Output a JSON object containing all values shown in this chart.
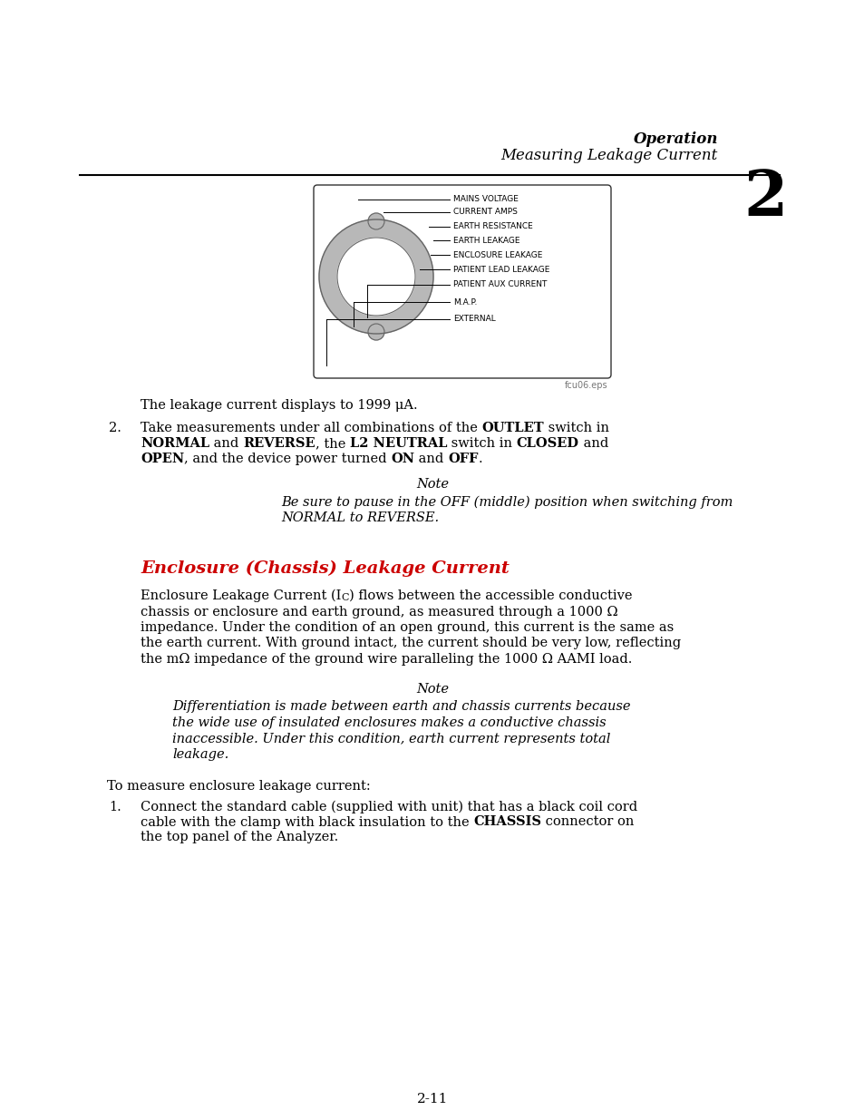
{
  "bg_color": "#ffffff",
  "header_italic": "Operation",
  "header_sub": "Measuring Leakage Current",
  "header_number": "2",
  "section_title": "Enclosure (Chassis) Leakage Current",
  "section_title_color": "#cc0000",
  "diagram_labels": [
    "MAINS VOLTAGE",
    "CURRENT AMPS",
    "EARTH RESISTANCE",
    "EARTH LEAKAGE",
    "ENCLOSURE LEAKAGE",
    "PATIENT LEAD LEAKAGE",
    "PATIENT AUX CURRENT",
    "M.A.P.",
    "EXTERNAL"
  ],
  "diagram_caption": "fcu06.eps",
  "para_leakage": "The leakage current displays to 1999 μA.",
  "note1_title": "Note",
  "note1_line1": "Be sure to pause in the OFF (middle) position when switching from",
  "note1_line2": "NORMAL to REVERSE.",
  "section_body_pre": "Enclosure Leakage Current (I",
  "section_body_sub": "C",
  "section_body_post": ") flows between the accessible conductive",
  "section_body_lines": [
    "chassis or enclosure and earth ground, as measured through a 1000 Ω",
    "impedance. Under the condition of an open ground, this current is the same as",
    "the earth current. With ground intact, the current should be very low, reflecting",
    "the mΩ impedance of the ground wire paralleling the 1000 Ω AAMI load."
  ],
  "note2_title": "Note",
  "note2_lines": [
    "Differentiation is made between earth and chassis currents because",
    "the wide use of insulated enclosures makes a conductive chassis",
    "inaccessible. Under this condition, earth current represents total",
    "leakage."
  ],
  "measure_text": "To measure enclosure leakage current:",
  "item1_line1": "Connect the standard cable (supplied with unit) that has a black coil cord",
  "item1_line2a": "cable with the clamp with black insulation to the ",
  "item1_bold": "CHASSIS",
  "item1_line2b": " connector on",
  "item1_line3": "the top panel of the Analyzer.",
  "page_number": "2-11"
}
